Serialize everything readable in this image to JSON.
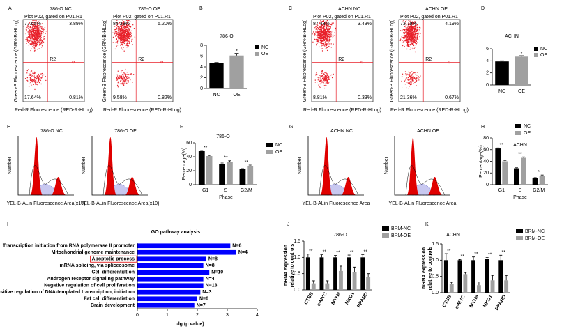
{
  "panels": [
    "A",
    "B",
    "C",
    "D",
    "E",
    "F",
    "G",
    "H",
    "I",
    "J",
    "K"
  ],
  "chart_data": [
    {
      "type": "cytometry",
      "title": "786-O NC",
      "gate": "Plot P02, gated on P01.R1",
      "region": "R2",
      "quadrants": [
        "77.65%",
        "3.89%",
        "17.64%",
        "0.81%"
      ],
      "xlabel": "Red-R Fluorescence (RED-R-HLog)",
      "ylabel": "Green-B Fluorescence (GRN-B-HLog)"
    },
    {
      "type": "cytometry",
      "title": "786-O OE",
      "gate": "Plot P02, gated on P01.R1",
      "region": "R2",
      "quadrants": [
        "84.39%",
        "5.20%",
        "9.58%",
        "0.82%"
      ],
      "xlabel": "Red-R Fluorescence (RED-R-HLog)",
      "ylabel": "Green-B Fluorescence (GRN-B-HLog)"
    },
    {
      "type": "bar",
      "title": "786-O",
      "categories": [
        "NC",
        "OE"
      ],
      "values": [
        4.7,
        6.1
      ],
      "errors": [
        0.1,
        0.4
      ],
      "colors": [
        "#000000",
        "#a0a0a0"
      ],
      "significance": [
        null,
        "*"
      ],
      "ylim": [
        0,
        8
      ],
      "yticks": [
        0,
        2,
        4,
        6,
        8
      ]
    },
    {
      "type": "cytometry",
      "title": "ACHN NC",
      "gate": "Plot P02, gated on P01.R1",
      "region": "R2",
      "quadrants": [
        "87.43%",
        "3.43%",
        "8.81%",
        "0.33%"
      ],
      "xlabel": "Red-R Fluorescence (RED-R-HLog)",
      "ylabel": "Green-B Fluorescence (GRN-B-HLog)"
    },
    {
      "type": "cytometry",
      "title": "ACHN OE",
      "gate": "Plot P02, gated on P01.R1",
      "region": "R2",
      "quadrants": [
        "73.78%",
        "4.19%",
        "21.36%",
        "0.67%"
      ],
      "xlabel": "Red-R Fluorescence (RED-R-HLog)",
      "ylabel": "Green-B Fluorescence (GRN-B-HLog)"
    },
    {
      "type": "bar",
      "title": "ACHN",
      "categories": [
        "NC",
        "OE"
      ],
      "values": [
        3.9,
        4.7
      ],
      "errors": [
        0.1,
        0.15
      ],
      "colors": [
        "#000000",
        "#a0a0a0"
      ],
      "significance": [
        null,
        "*"
      ],
      "ylim": [
        0,
        6
      ],
      "yticks": [
        0,
        2,
        4,
        6
      ]
    },
    {
      "type": "cellcycle",
      "title": "786-O NC",
      "xlabel": "YEL-B-ALin Fluorescence Area(x10)",
      "ylabel": "Number"
    },
    {
      "type": "cellcycle",
      "title": "786-O OE",
      "xlabel": "YEL-B-ALin Fluorescence Area(x10)",
      "ylabel": "Number"
    },
    {
      "type": "grouped",
      "title": "786-O",
      "xlabel": "Phase",
      "ylabel": "Percentage(%)",
      "categories": [
        "G1",
        "S",
        "G2/M"
      ],
      "series": [
        {
          "name": "NC",
          "color": "#000000",
          "values": [
            48,
            30,
            22
          ],
          "errors": [
            1,
            1,
            1
          ]
        },
        {
          "name": "OE",
          "color": "#a0a0a0",
          "values": [
            41,
            33,
            27
          ],
          "errors": [
            1,
            1.2,
            1
          ]
        }
      ],
      "significance": [
        "**",
        "**",
        "**"
      ],
      "ylim": [
        0,
        60
      ],
      "yticks": [
        0,
        20,
        40,
        60
      ]
    },
    {
      "type": "cellcycle",
      "title": "ACHN NC",
      "xlabel": "YEL-B-ALin Fluorescence Area",
      "ylabel": "Number"
    },
    {
      "type": "cellcycle",
      "title": "ACHN OE",
      "xlabel": "YEL-B-ALin Fluorescence Area",
      "ylabel": "Number"
    },
    {
      "type": "grouped",
      "title": "ACHN",
      "xlabel": "Phase",
      "ylabel": "Percentage(%)",
      "categories": [
        "G1",
        "S",
        "G2/M"
      ],
      "series": [
        {
          "name": "NC",
          "color": "#000000",
          "values": [
            62,
            28,
            11
          ],
          "errors": [
            1,
            1,
            1
          ]
        },
        {
          "name": "OE",
          "color": "#a0a0a0",
          "values": [
            40,
            46,
            15
          ],
          "errors": [
            1.5,
            1.5,
            1.5
          ]
        }
      ],
      "significance": [
        "**",
        "**",
        "*"
      ],
      "ylim": [
        0,
        80
      ],
      "yticks": [
        0,
        20,
        40,
        60,
        80
      ]
    },
    {
      "type": "hbar",
      "title": "GO pathway analysis",
      "xlabel": "-lg (p value)",
      "color": "#0000ff",
      "highlight_category": "Apoptotic process",
      "categories": [
        "Transcription initiation from RNA polymerase II promoter",
        "Mitochondrial genome maintenance",
        "Apoptotic process",
        "mRNA splicing, via spliceosome",
        "Cell differentiation",
        "Androgen receptor signaling pathway",
        "Negative regulation of cell proliferation",
        "positive regulation of DNA-templated transcription, initiation",
        "Fat cell differentiation",
        "Brain development"
      ],
      "values": [
        3.1,
        3.3,
        2.3,
        2.2,
        2.4,
        2.2,
        2.2,
        2.1,
        2.0,
        1.9
      ],
      "counts": [
        "N=6",
        "N=4",
        "N=8",
        "N=8",
        "N=10",
        "N=4",
        "N=13",
        "N=3",
        "N=6",
        "N=7"
      ],
      "xlim": [
        0,
        4
      ],
      "xticks": [
        0,
        1,
        2,
        3,
        4
      ]
    },
    {
      "type": "grouped",
      "title": "786-O",
      "ylabel": [
        "mRNA expression",
        "relative to controls"
      ],
      "categories": [
        "CTSB",
        "c-MYC",
        "MYH9",
        "NKD1",
        "PPARD"
      ],
      "series": [
        {
          "name": "BRM-NC",
          "color": "#000000",
          "values": [
            1,
            1,
            1,
            1,
            1
          ],
          "errors": [
            0.1,
            0.08,
            0.06,
            0.07,
            0.08
          ]
        },
        {
          "name": "BRM-OE",
          "color": "#a0a0a0",
          "values": [
            0.2,
            0.2,
            0.58,
            0.55,
            0.4
          ],
          "errors": [
            0.08,
            0.08,
            0.15,
            0.15,
            0.1
          ]
        }
      ],
      "significance": [
        "**",
        "**",
        "**",
        "**",
        "**"
      ],
      "ylim": [
        0,
        1.5
      ],
      "yticks": [
        {
          "value": 0,
          "label": "0.0"
        },
        0.5,
        {
          "value": 1,
          "label": "1.0"
        },
        1.5
      ]
    },
    {
      "type": "grouped",
      "title": "ACHN",
      "ylabel": [
        "mRNA expression",
        "relative to controls"
      ],
      "categories": [
        "CTSB",
        "c-MYC",
        "MYH9",
        "NKD1",
        "PPARD"
      ],
      "series": [
        {
          "name": "BRM-NC",
          "color": "#000000",
          "values": [
            1,
            1,
            1,
            1.03,
            1
          ],
          "errors": [
            0.2,
            0.02,
            0.1,
            0.05,
            0.15
          ]
        },
        {
          "name": "BRM-OE",
          "color": "#a0a0a0",
          "values": [
            0.27,
            0.57,
            0.23,
            0.38,
            0.38
          ],
          "errors": [
            0.05,
            0.05,
            0.1,
            0.15,
            0.15
          ]
        }
      ],
      "significance": [
        "**",
        "**",
        "**",
        "**",
        "**"
      ],
      "ylim": [
        0,
        1.5
      ],
      "yticks": [
        {
          "value": 0,
          "label": "0.0"
        },
        0.5,
        {
          "value": 1,
          "label": "1.0"
        },
        1.5
      ]
    }
  ]
}
